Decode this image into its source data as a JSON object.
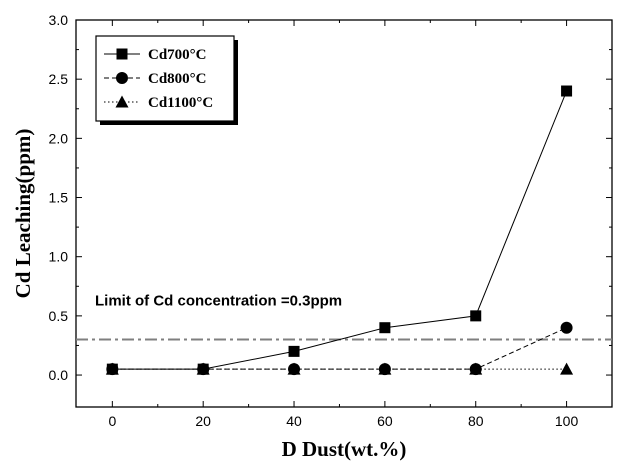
{
  "chart_data": {
    "type": "line",
    "xlabel": "D Dust(wt.%)",
    "ylabel": "Cd Leaching(ppm)",
    "xlim": [
      -8,
      110
    ],
    "ylim": [
      -0.27,
      3.0
    ],
    "xticks": [
      0,
      20,
      40,
      60,
      80,
      100
    ],
    "xtick_labels": [
      "0",
      "20",
      "40",
      "60",
      "80",
      "100"
    ],
    "yticks": [
      0.0,
      0.5,
      1.0,
      1.5,
      2.0,
      2.5,
      3.0
    ],
    "ytick_labels": [
      "0.0",
      "0.5",
      "1.0",
      "1.5",
      "2.0",
      "2.5",
      "3.0"
    ],
    "grid": false,
    "legend_position": "top-left",
    "x": [
      0,
      20,
      40,
      60,
      80,
      100
    ],
    "series": [
      {
        "name": "Cd700°C",
        "marker": "square",
        "line_style": "solid",
        "values": [
          0.05,
          0.05,
          0.2,
          0.4,
          0.5,
          2.4
        ]
      },
      {
        "name": "Cd800°C",
        "marker": "circle",
        "line_style": "dashed",
        "values": [
          0.05,
          0.05,
          0.05,
          0.05,
          0.05,
          0.4
        ]
      },
      {
        "name": "Cd1100°C",
        "marker": "triangle",
        "line_style": "dotted",
        "values": [
          0.05,
          0.05,
          0.05,
          0.05,
          0.05,
          0.05
        ]
      }
    ],
    "reference_line": {
      "label": "Limit of Cd concentration =0.3ppm",
      "value": 0.3,
      "color": "#7f7f7f",
      "line_style": "dash-dot"
    }
  }
}
